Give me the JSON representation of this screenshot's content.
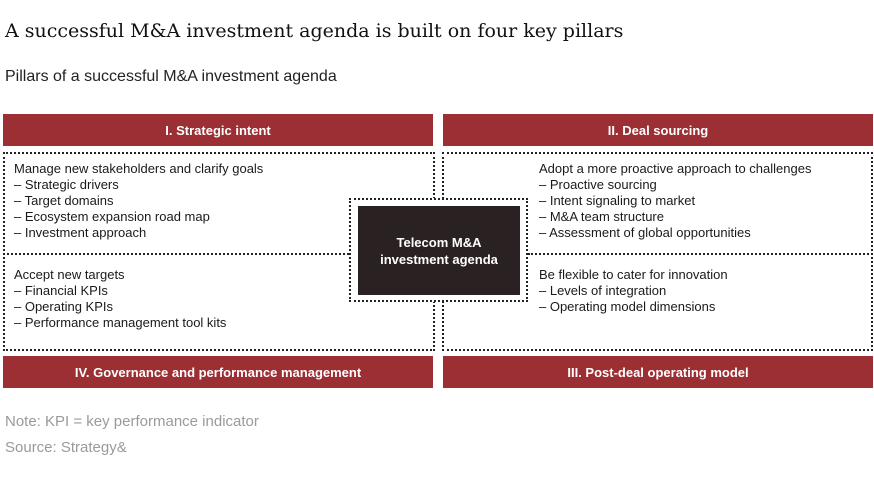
{
  "title": "A successful M&A investment agenda is built on four key pillars",
  "subtitle": "Pillars of a successful M&A investment agenda",
  "colors": {
    "banner": "#9b2f34",
    "center": "#2a2222"
  },
  "center": {
    "line1": "Telecom M&A",
    "line2": "investment agenda"
  },
  "pillars": [
    {
      "heading": "I. Strategic intent",
      "items": [
        "Manage new stakeholders and clarify goals",
        "– Strategic drivers",
        "– Target domains",
        "– Ecosystem expansion road map",
        "– Investment approach"
      ]
    },
    {
      "heading": "II. Deal sourcing",
      "items": [
        "Adopt a more proactive approach to challenges",
        "– Proactive sourcing",
        "– Intent signaling to market",
        "– M&A team structure",
        "– Assessment of global opportunities"
      ]
    },
    {
      "heading": "III. Post-deal operating model",
      "items": [
        "Be flexible to cater for innovation",
        "– Levels of integration",
        "– Operating model dimensions"
      ]
    },
    {
      "heading": "IV. Governance and performance management",
      "items": [
        "Accept new targets",
        "– Financial KPIs",
        "– Operating KPIs",
        "– Performance management tool kits"
      ]
    }
  ],
  "note": "Note: KPI = key performance indicator",
  "source": "Source: Strategy&"
}
